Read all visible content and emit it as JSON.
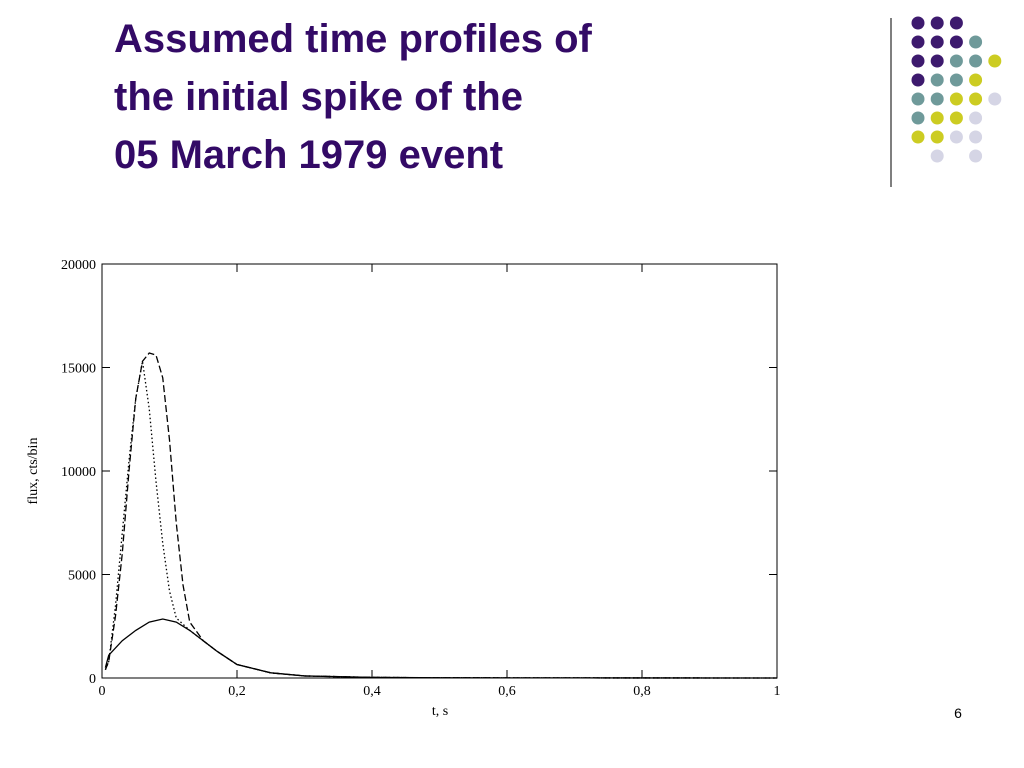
{
  "title_lines": [
    "Assumed time profiles of",
    "the initial spike of the",
    "05 March 1979 event"
  ],
  "page_number": "6",
  "chart_data": {
    "type": "line",
    "x_label": "t, s",
    "y_label": "flux, cts/bin",
    "xlim": [
      0,
      1
    ],
    "ylim": [
      0,
      20000
    ],
    "xticks": [
      0,
      {
        "value": 0.2,
        "label": "0,2"
      },
      {
        "value": 0.4,
        "label": "0,4"
      },
      {
        "value": 0.6,
        "label": "0,6"
      },
      {
        "value": 0.8,
        "label": "0,8"
      },
      1
    ],
    "yticks": [
      0,
      5000,
      10000,
      15000,
      20000
    ],
    "series": [
      {
        "color": "#000000",
        "dash": "solid",
        "x": [
          0.005,
          0.01,
          0.03,
          0.05,
          0.07,
          0.09,
          0.11,
          0.13,
          0.15,
          0.17,
          0.2,
          0.25,
          0.3,
          0.4,
          0.5,
          0.7,
          1
        ],
        "values": [
          500,
          1100,
          1800,
          2300,
          2700,
          2850,
          2700,
          2300,
          1800,
          1300,
          650,
          250,
          100,
          30,
          10,
          5,
          0
        ]
      },
      {
        "color": "#000000",
        "dash": "dashed",
        "x": [
          0.005,
          0.01,
          0.02,
          0.03,
          0.04,
          0.05,
          0.06,
          0.07,
          0.08,
          0.09,
          0.1,
          0.11,
          0.12,
          0.13,
          0.15,
          0.17,
          0.2,
          0.25,
          0.3,
          0.4,
          0.5,
          0.7,
          1
        ],
        "values": [
          400,
          800,
          3000,
          6000,
          10000,
          13500,
          15300,
          15700,
          15600,
          14500,
          11500,
          7500,
          4500,
          2700,
          1800,
          1300,
          650,
          250,
          100,
          30,
          10,
          5,
          0
        ]
      },
      {
        "color": "#000000",
        "dash": "dotted",
        "x": [
          0.005,
          0.01,
          0.02,
          0.03,
          0.04,
          0.05,
          0.06,
          0.07,
          0.08,
          0.09,
          0.1,
          0.11,
          0.12,
          0.13,
          0.15,
          0.17,
          0.2,
          0.25,
          0.3,
          0.4,
          0.5,
          0.7,
          1
        ],
        "values": [
          400,
          800,
          3500,
          7000,
          10500,
          13500,
          15300,
          13000,
          9500,
          6500,
          4200,
          2900,
          2600,
          2300,
          1800,
          1300,
          650,
          250,
          100,
          30,
          10,
          5,
          0
        ]
      }
    ]
  }
}
